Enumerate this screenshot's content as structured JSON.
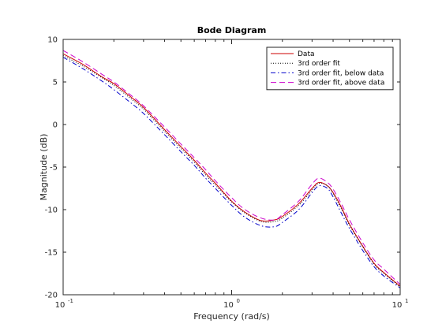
{
  "chart_data": {
    "type": "line",
    "title": "Bode Diagram",
    "xlabel": "Frequency  (rad/s)",
    "ylabel": "Magnitude (dB)",
    "x_scale": "log",
    "xlim": [
      0.1,
      10
    ],
    "ylim": [
      -20,
      10
    ],
    "x_ticks": [
      0.1,
      1,
      10
    ],
    "x_tick_labels": [
      [
        "10",
        "-1"
      ],
      [
        "10",
        "0"
      ],
      [
        "10",
        "1"
      ]
    ],
    "y_ticks": [
      -20,
      -15,
      -10,
      -5,
      0,
      5,
      10
    ],
    "y_tick_labels": [
      "-20",
      "-15",
      "-10",
      "-5",
      "0",
      "5",
      "10"
    ],
    "grid": false,
    "legend_position": "top-right",
    "series": [
      {
        "name": "Data",
        "color": "#cc0000",
        "dash": "solid",
        "x": [
          0.1,
          0.13,
          0.17,
          0.2,
          0.25,
          0.3,
          0.4,
          0.5,
          0.6,
          0.7,
          0.8,
          1.0,
          1.2,
          1.5,
          1.8,
          2.0,
          2.5,
          3.0,
          3.3,
          3.7,
          4.0,
          4.5,
          5.0,
          6.0,
          7.0,
          8.0,
          10.0
        ],
        "y": [
          8.3,
          7.1,
          5.6,
          4.8,
          3.3,
          2.0,
          -0.6,
          -2.6,
          -4.2,
          -5.7,
          -6.9,
          -9.0,
          -10.3,
          -11.3,
          -11.2,
          -10.8,
          -9.3,
          -7.5,
          -6.8,
          -7.2,
          -8.0,
          -9.8,
          -11.7,
          -14.3,
          -16.3,
          -17.4,
          -19.0
        ]
      },
      {
        "name": "3rd order fit",
        "color": "#000000",
        "dash": "dotted",
        "x": [
          0.1,
          0.13,
          0.17,
          0.2,
          0.25,
          0.3,
          0.4,
          0.5,
          0.6,
          0.7,
          0.8,
          1.0,
          1.2,
          1.5,
          1.8,
          2.0,
          2.5,
          3.0,
          3.3,
          3.7,
          4.0,
          4.5,
          5.0,
          6.0,
          7.0,
          8.0,
          10.0
        ],
        "y": [
          8.1,
          6.9,
          5.5,
          4.6,
          3.1,
          1.8,
          -0.8,
          -2.8,
          -4.4,
          -5.9,
          -7.1,
          -9.1,
          -10.4,
          -11.4,
          -11.4,
          -11.0,
          -9.5,
          -7.7,
          -6.9,
          -7.2,
          -8.1,
          -10.0,
          -11.8,
          -14.4,
          -16.4,
          -17.5,
          -19.1
        ]
      },
      {
        "name": "3rd order fit, below data",
        "color": "#0000cc",
        "dash": "dashdot",
        "x": [
          0.1,
          0.13,
          0.17,
          0.2,
          0.25,
          0.3,
          0.4,
          0.5,
          0.6,
          0.7,
          0.8,
          1.0,
          1.2,
          1.5,
          1.8,
          2.0,
          2.5,
          3.0,
          3.3,
          3.7,
          4.0,
          4.5,
          5.0,
          6.0,
          7.0,
          8.0,
          10.0
        ],
        "y": [
          7.9,
          6.6,
          5.1,
          4.1,
          2.6,
          1.3,
          -1.2,
          -3.2,
          -4.8,
          -6.3,
          -7.5,
          -9.5,
          -10.9,
          -11.9,
          -12.0,
          -11.5,
          -10.0,
          -8.0,
          -7.2,
          -7.5,
          -8.5,
          -10.5,
          -12.2,
          -14.8,
          -16.7,
          -17.8,
          -19.2
        ]
      },
      {
        "name": "3rd order fit, above data",
        "color": "#cc00cc",
        "dash": "dashed",
        "x": [
          0.1,
          0.13,
          0.17,
          0.2,
          0.25,
          0.3,
          0.4,
          0.5,
          0.6,
          0.7,
          0.8,
          1.0,
          1.2,
          1.5,
          1.8,
          2.0,
          2.5,
          3.0,
          3.3,
          3.7,
          4.0,
          4.5,
          5.0,
          6.0,
          7.0,
          8.0,
          10.0
        ],
        "y": [
          8.7,
          7.4,
          5.9,
          5.0,
          3.5,
          2.2,
          -0.3,
          -2.3,
          -3.9,
          -5.3,
          -6.6,
          -8.6,
          -10.0,
          -11.0,
          -11.2,
          -10.6,
          -9.0,
          -7.0,
          -6.3,
          -6.8,
          -7.6,
          -9.4,
          -11.2,
          -13.9,
          -15.9,
          -17.0,
          -18.8
        ]
      }
    ]
  }
}
